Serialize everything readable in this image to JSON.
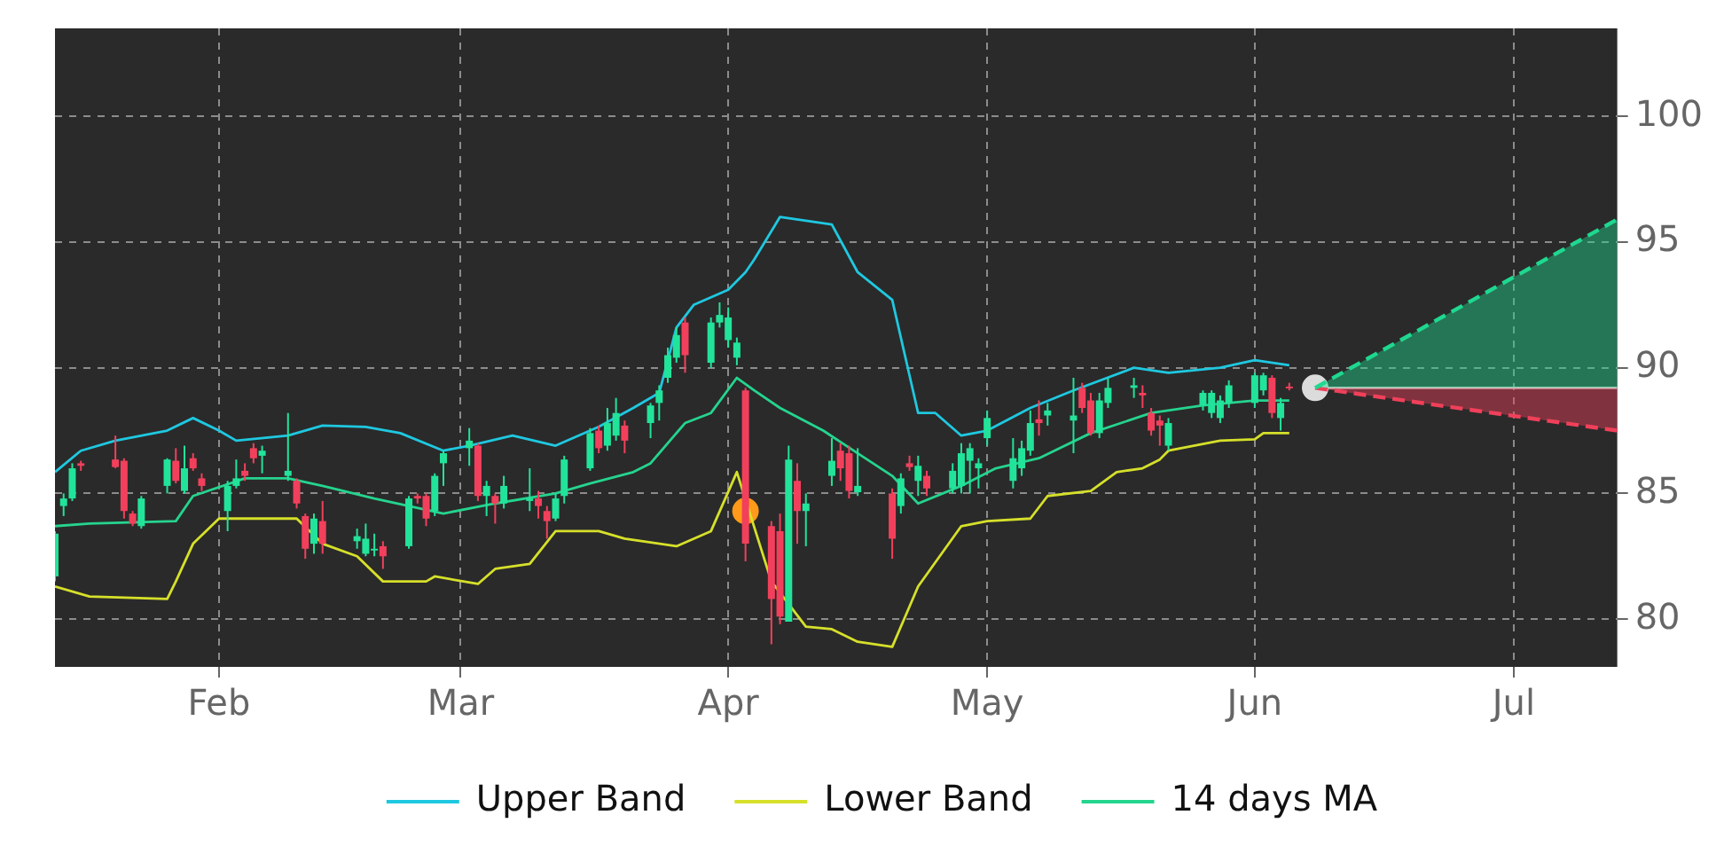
{
  "chart_data": {
    "type": "candlestick",
    "legend": "bottom",
    "grid": true,
    "ylim": [
      78.1,
      103.5
    ],
    "yticks": [
      80,
      85,
      90,
      95,
      100
    ],
    "xlim": [
      "--01-13",
      "--07-13"
    ],
    "xticks": [
      {
        "value": "--02-01",
        "label": "Feb"
      },
      {
        "value": "--03-01",
        "label": "Mar"
      },
      {
        "value": "--04-01",
        "label": "Apr"
      },
      {
        "value": "--05-01",
        "label": "May"
      },
      {
        "value": "--06-01",
        "label": "Jun"
      },
      {
        "value": "--07-01",
        "label": "Jul"
      }
    ],
    "x": [
      "--01-13",
      "--01-14",
      "--01-15",
      "--01-16",
      "--01-20",
      "--01-21",
      "--01-22",
      "--01-23",
      "--01-26",
      "--01-27",
      "--01-28",
      "--01-29",
      "--01-30",
      "--02-02",
      "--02-03",
      "--02-04",
      "--02-05",
      "--02-06",
      "--02-09",
      "--02-10",
      "--02-11",
      "--02-12",
      "--02-13",
      "--02-17",
      "--02-18",
      "--02-19",
      "--02-20",
      "--02-23",
      "--02-24",
      "--02-25",
      "--02-26",
      "--02-27",
      "--03-02",
      "--03-03",
      "--03-04",
      "--03-05",
      "--03-06",
      "--03-09",
      "--03-10",
      "--03-11",
      "--03-12",
      "--03-13",
      "--03-16",
      "--03-17",
      "--03-18",
      "--03-19",
      "--03-20",
      "--03-23",
      "--03-24",
      "--03-25",
      "--03-26",
      "--03-27",
      "--03-30",
      "--03-31",
      "--04-01",
      "--04-02",
      "--04-03",
      "--04-06",
      "--04-07",
      "--04-08",
      "--04-09",
      "--04-10",
      "--04-13",
      "--04-14",
      "--04-15",
      "--04-16",
      "--04-20",
      "--04-21",
      "--04-22",
      "--04-23",
      "--04-24",
      "--04-27",
      "--04-28",
      "--04-29",
      "--04-30",
      "--05-01",
      "--05-04",
      "--05-05",
      "--05-06",
      "--05-07",
      "--05-08",
      "--05-11",
      "--05-12",
      "--05-13",
      "--05-14",
      "--05-15",
      "--05-18",
      "--05-19",
      "--05-20",
      "--05-21",
      "--05-22",
      "--05-26",
      "--05-27",
      "--05-28",
      "--05-29",
      "--06-01",
      "--06-02",
      "--06-03",
      "--06-04",
      "--06-05"
    ],
    "ohlc": [
      [
        81.7,
        83.5,
        81.5,
        83.4
      ],
      [
        84.5,
        85.0,
        84.1,
        84.8
      ],
      [
        84.8,
        86.2,
        84.7,
        86.0
      ],
      [
        86.2,
        86.3,
        85.9,
        86.1
      ],
      [
        86.35,
        87.3,
        86.0,
        86.05
      ],
      [
        86.3,
        86.4,
        84.0,
        84.3
      ],
      [
        84.2,
        84.3,
        83.7,
        83.8
      ],
      [
        83.7,
        84.9,
        83.6,
        84.8
      ],
      [
        85.3,
        86.4,
        85.0,
        86.35
      ],
      [
        86.3,
        86.8,
        85.4,
        85.5
      ],
      [
        85.1,
        86.9,
        85.0,
        86.0
      ],
      [
        86.4,
        86.6,
        85.9,
        86.0
      ],
      [
        85.6,
        85.8,
        85.1,
        85.3
      ],
      [
        84.3,
        85.5,
        83.5,
        85.3
      ],
      [
        85.3,
        86.35,
        85.2,
        85.6
      ],
      [
        85.9,
        86.2,
        85.5,
        85.7
      ],
      [
        86.8,
        87.0,
        86.2,
        86.4
      ],
      [
        86.5,
        86.9,
        85.8,
        86.7
      ],
      [
        85.7,
        88.2,
        85.5,
        85.9
      ],
      [
        85.5,
        85.6,
        84.4,
        84.6
      ],
      [
        84.1,
        84.2,
        82.4,
        82.8
      ],
      [
        83.0,
        84.2,
        82.6,
        84.0
      ],
      [
        83.9,
        84.7,
        82.6,
        83.0
      ],
      [
        83.1,
        83.6,
        82.8,
        83.3
      ],
      [
        82.6,
        83.8,
        82.5,
        83.2
      ],
      [
        82.75,
        83.4,
        82.5,
        82.8
      ],
      [
        82.9,
        83.1,
        82.0,
        82.5
      ],
      [
        82.9,
        84.9,
        82.8,
        84.8
      ],
      [
        84.9,
        85.0,
        84.6,
        84.8
      ],
      [
        84.9,
        85.0,
        83.7,
        84.0
      ],
      [
        84.3,
        85.8,
        84.1,
        85.7
      ],
      [
        86.2,
        86.7,
        85.3,
        86.6
      ],
      [
        86.8,
        87.6,
        86.1,
        87.1
      ],
      [
        86.9,
        87.0,
        84.7,
        84.9
      ],
      [
        84.9,
        85.5,
        84.1,
        85.3
      ],
      [
        84.9,
        85.0,
        83.8,
        84.6
      ],
      [
        84.6,
        85.7,
        84.4,
        85.3
      ],
      [
        84.7,
        86.0,
        84.3,
        84.8
      ],
      [
        84.8,
        85.1,
        84.0,
        84.5
      ],
      [
        84.3,
        84.5,
        83.2,
        83.9
      ],
      [
        84.0,
        85.0,
        83.9,
        84.8
      ],
      [
        84.9,
        86.5,
        84.6,
        86.35
      ],
      [
        86.0,
        87.6,
        85.9,
        87.4
      ],
      [
        87.5,
        87.7,
        86.6,
        86.8
      ],
      [
        86.9,
        88.4,
        86.7,
        87.8
      ],
      [
        87.3,
        88.8,
        87.1,
        88.2
      ],
      [
        87.7,
        87.9,
        86.6,
        87.1
      ],
      [
        87.8,
        88.6,
        87.2,
        88.5
      ],
      [
        88.6,
        89.3,
        87.9,
        89.1
      ],
      [
        89.6,
        90.8,
        89.4,
        90.5
      ],
      [
        90.4,
        91.6,
        90.2,
        91.3
      ],
      [
        91.8,
        92.0,
        89.8,
        90.5
      ],
      [
        90.2,
        92.0,
        90.0,
        91.8
      ],
      [
        91.8,
        92.6,
        91.6,
        92.1
      ],
      [
        91.1,
        92.4,
        90.8,
        92.0
      ],
      [
        90.4,
        91.2,
        90.1,
        91.0
      ],
      [
        89.1,
        89.2,
        82.3,
        83.0
      ],
      [
        83.7,
        83.9,
        79.0,
        80.8
      ],
      [
        83.5,
        84.2,
        79.8,
        80.1
      ],
      [
        79.9,
        86.9,
        79.9,
        86.35
      ],
      [
        85.5,
        86.2,
        83.0,
        84.3
      ],
      [
        84.3,
        85.0,
        82.9,
        84.6
      ],
      [
        85.7,
        87.2,
        85.3,
        86.3
      ],
      [
        86.7,
        87.0,
        85.5,
        86.0
      ],
      [
        86.6,
        86.9,
        84.8,
        85.1
      ],
      [
        85.05,
        86.8,
        84.9,
        85.3
      ],
      [
        85.0,
        85.2,
        82.4,
        83.2
      ],
      [
        84.5,
        85.8,
        84.2,
        85.6
      ],
      [
        86.2,
        86.5,
        85.9,
        86.05
      ],
      [
        85.5,
        86.5,
        84.9,
        86.1
      ],
      [
        85.7,
        85.9,
        84.9,
        85.2
      ],
      [
        85.2,
        86.2,
        85.0,
        85.9
      ],
      [
        85.3,
        87.0,
        85.0,
        86.6
      ],
      [
        86.3,
        87.0,
        85.0,
        86.8
      ],
      [
        86.0,
        86.4,
        85.2,
        86.2
      ],
      [
        87.2,
        88.3,
        86.9,
        88.0
      ],
      [
        85.5,
        87.2,
        85.2,
        86.4
      ],
      [
        86.0,
        87.1,
        85.7,
        86.8
      ],
      [
        86.7,
        88.3,
        86.5,
        87.8
      ],
      [
        87.95,
        88.7,
        87.3,
        87.8
      ],
      [
        88.1,
        88.6,
        87.7,
        88.3
      ],
      [
        87.9,
        89.6,
        86.6,
        88.1
      ],
      [
        89.2,
        89.4,
        88.2,
        88.4
      ],
      [
        88.7,
        89.0,
        87.3,
        87.4
      ],
      [
        87.4,
        89.0,
        87.2,
        88.7
      ],
      [
        88.6,
        89.6,
        88.4,
        89.2
      ],
      [
        89.2,
        89.6,
        88.8,
        89.3
      ],
      [
        89.0,
        89.3,
        88.4,
        88.9
      ],
      [
        88.2,
        88.4,
        87.3,
        87.5
      ],
      [
        87.9,
        88.1,
        86.9,
        87.7
      ],
      [
        86.9,
        88.0,
        86.7,
        87.8
      ],
      [
        88.5,
        89.1,
        88.3,
        89.0
      ],
      [
        88.2,
        89.1,
        88.0,
        89.0
      ],
      [
        88.0,
        88.9,
        87.8,
        88.7
      ],
      [
        88.6,
        89.5,
        88.4,
        89.3
      ],
      [
        88.6,
        89.8,
        88.4,
        89.7
      ],
      [
        89.1,
        89.8,
        88.9,
        89.7
      ],
      [
        89.6,
        89.7,
        88.0,
        88.2
      ],
      [
        88.0,
        88.8,
        87.5,
        88.6
      ],
      [
        89.25,
        89.4,
        89.1,
        89.2
      ]
    ],
    "colors": [
      "#22e39a",
      "#22e39a",
      "#22e39a",
      "#f2405c",
      "#f2405c",
      "#f2405c",
      "#f2405c",
      "#22e39a",
      "#22e39a",
      "#f2405c",
      "#22e39a",
      "#f2405c",
      "#f2405c",
      "#22e39a",
      "#22e39a",
      "#f2405c",
      "#f2405c",
      "#22e39a",
      "#22e39a",
      "#f2405c",
      "#f2405c",
      "#22e39a",
      "#f2405c",
      "#22e39a",
      "#22e39a",
      "#22e39a",
      "#f2405c",
      "#22e39a",
      "#f2405c",
      "#f2405c",
      "#22e39a",
      "#22e39a",
      "#22e39a",
      "#f2405c",
      "#22e39a",
      "#f2405c",
      "#22e39a",
      "#22e39a",
      "#f2405c",
      "#f2405c",
      "#22e39a",
      "#22e39a",
      "#22e39a",
      "#f2405c",
      "#22e39a",
      "#22e39a",
      "#f2405c",
      "#22e39a",
      "#22e39a",
      "#22e39a",
      "#22e39a",
      "#f2405c",
      "#22e39a",
      "#22e39a",
      "#22e39a",
      "#22e39a",
      "#f2405c",
      "#f2405c",
      "#f2405c",
      "#22e39a",
      "#f2405c",
      "#22e39a",
      "#22e39a",
      "#f2405c",
      "#f2405c",
      "#22e39a",
      "#f2405c",
      "#22e39a",
      "#f2405c",
      "#22e39a",
      "#f2405c",
      "#22e39a",
      "#22e39a",
      "#22e39a",
      "#22e39a",
      "#22e39a",
      "#22e39a",
      "#22e39a",
      "#22e39a",
      "#f2405c",
      "#22e39a",
      "#22e39a",
      "#f2405c",
      "#f2405c",
      "#22e39a",
      "#22e39a",
      "#22e39a",
      "#f2405c",
      "#f2405c",
      "#f2405c",
      "#22e39a",
      "#22e39a",
      "#22e39a",
      "#22e39a",
      "#22e39a",
      "#22e39a",
      "#22e39a",
      "#f2405c",
      "#22e39a",
      "#f2405c"
    ],
    "series": [
      {
        "type": "line",
        "name": "Upper Band",
        "color": "#1fc8e0",
        "x": [
          "--01-13",
          "--01-16",
          "--01-20",
          "--01-26",
          "--01-29",
          "--02-01",
          "--02-03",
          "--02-09",
          "--02-13",
          "--02-18",
          "--02-22",
          "--02-27",
          "--03-02",
          "--03-07",
          "--03-12",
          "--03-17",
          "--03-21",
          "--03-24",
          "--03-26",
          "--03-28",
          "--04-01",
          "--04-03",
          "--04-04",
          "--04-07",
          "--04-13",
          "--04-16",
          "--04-20",
          "--04-23",
          "--04-25",
          "--04-28",
          "--05-01",
          "--05-06",
          "--05-11",
          "--05-18",
          "--05-22",
          "--05-28",
          "--06-01",
          "--06-05"
        ],
        "values": [
          85.85,
          86.7,
          87.1,
          87.5,
          88.0,
          87.5,
          87.1,
          87.3,
          87.7,
          87.65,
          87.4,
          86.7,
          86.9,
          87.3,
          86.9,
          87.65,
          88.4,
          89.0,
          91.6,
          92.5,
          93.1,
          93.8,
          94.3,
          96.0,
          95.7,
          93.8,
          92.7,
          88.2,
          88.2,
          87.3,
          87.5,
          88.4,
          89.1,
          90.0,
          89.8,
          90.0,
          90.3,
          90.1
        ]
      },
      {
        "type": "line",
        "name": "Lower Band",
        "color": "#d6e02a",
        "x": [
          "--01-13",
          "--01-17",
          "--01-26",
          "--01-27",
          "--01-29",
          "--02-01",
          "--02-10",
          "--02-13",
          "--02-17",
          "--02-20",
          "--02-25",
          "--02-26",
          "--03-03",
          "--03-05",
          "--03-09",
          "--03-12",
          "--03-17",
          "--03-20",
          "--03-26",
          "--03-30",
          "--04-02",
          "--04-06",
          "--04-10",
          "--04-13",
          "--04-16",
          "--04-20",
          "--04-23",
          "--04-28",
          "--05-01",
          "--05-06",
          "--05-08",
          "--05-13",
          "--05-16",
          "--05-19",
          "--05-21",
          "--05-22",
          "--05-28",
          "--06-01",
          "--06-02",
          "--06-05"
        ],
        "values": [
          81.3,
          80.9,
          80.8,
          81.5,
          83.0,
          84.0,
          84.0,
          83.0,
          82.5,
          81.5,
          81.5,
          81.7,
          81.4,
          82.0,
          82.2,
          83.5,
          83.5,
          83.2,
          82.9,
          83.5,
          85.85,
          81.5,
          79.7,
          79.6,
          79.1,
          78.9,
          81.3,
          83.7,
          83.9,
          84.0,
          84.9,
          85.1,
          85.85,
          86.0,
          86.35,
          86.7,
          87.1,
          87.15,
          87.4,
          87.4
        ]
      },
      {
        "type": "line",
        "name": "14 days MA",
        "color": "#25d48e",
        "x": [
          "--01-13",
          "--01-17",
          "--01-27",
          "--01-29",
          "--02-04",
          "--02-09",
          "--02-13",
          "--02-19",
          "--02-27",
          "--03-05",
          "--03-12",
          "--03-16",
          "--03-21",
          "--03-23",
          "--03-27",
          "--03-30",
          "--04-02",
          "--04-04",
          "--04-07",
          "--04-12",
          "--04-16",
          "--04-20",
          "--04-23",
          "--04-28",
          "--05-02",
          "--05-07",
          "--05-13",
          "--05-20",
          "--05-26",
          "--06-01",
          "--06-05"
        ],
        "values": [
          83.7,
          83.8,
          83.9,
          84.9,
          85.6,
          85.6,
          85.3,
          84.8,
          84.2,
          84.6,
          85.0,
          85.4,
          85.85,
          86.2,
          87.8,
          88.2,
          89.6,
          89.1,
          88.4,
          87.5,
          86.6,
          85.7,
          84.6,
          85.3,
          86.0,
          86.4,
          87.4,
          88.2,
          88.5,
          88.7,
          88.7
        ]
      },
      {
        "type": "area",
        "color": "#1fd890",
        "line_style": "dashed",
        "x": [
          "--06-08",
          "--07-13"
        ],
        "values": [
          89.2,
          95.9
        ]
      },
      {
        "type": "area",
        "color": "#f0405a",
        "line_style": "dashed",
        "x": [
          "--06-08",
          "--07-13"
        ],
        "values": [
          89.2,
          87.5
        ]
      },
      {
        "type": "line",
        "color": "#dcdcdc",
        "x": [
          "--06-08",
          "--07-13"
        ],
        "values": [
          89.2,
          89.2
        ]
      },
      {
        "type": "scatter",
        "color": "#ff9a1a",
        "marker": "circle",
        "x": [
          "--04-03"
        ],
        "values": [
          84.3
        ]
      },
      {
        "type": "scatter",
        "color": "#dcdcdc",
        "marker": "circle",
        "x": [
          "--06-08"
        ],
        "values": [
          89.2
        ]
      }
    ]
  }
}
